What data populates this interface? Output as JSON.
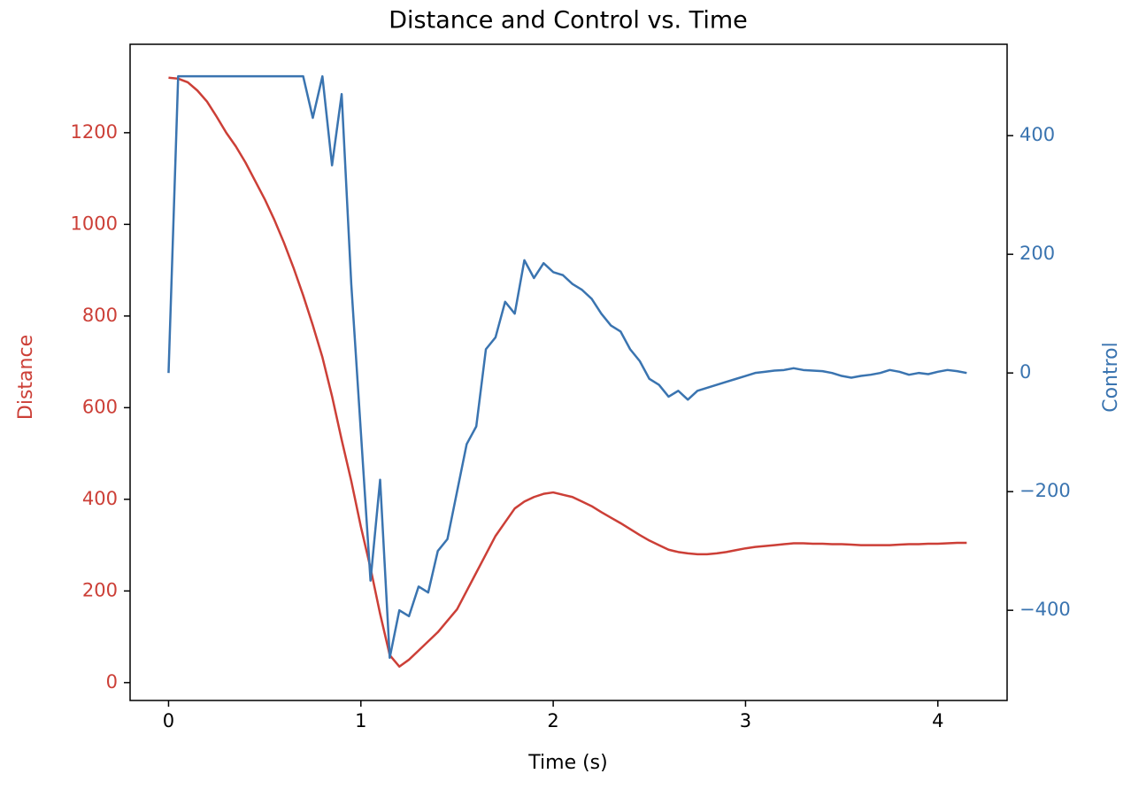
{
  "chart_data": {
    "type": "line",
    "title": "Distance and Control vs. Time",
    "x_label": "Time (s)",
    "y_label": "Distance",
    "y2_label": "Control",
    "x": [
      0,
      0.05,
      0.1,
      0.15,
      0.2,
      0.25,
      0.3,
      0.35,
      0.4,
      0.45,
      0.5,
      0.55,
      0.6,
      0.65,
      0.7,
      0.75,
      0.8,
      0.85,
      0.9,
      0.95,
      1.0,
      1.05,
      1.1,
      1.15,
      1.2,
      1.25,
      1.3,
      1.35,
      1.4,
      1.45,
      1.5,
      1.55,
      1.6,
      1.65,
      1.7,
      1.75,
      1.8,
      1.85,
      1.9,
      1.95,
      2.0,
      2.05,
      2.1,
      2.15,
      2.2,
      2.25,
      2.3,
      2.35,
      2.4,
      2.45,
      2.5,
      2.55,
      2.6,
      2.65,
      2.7,
      2.75,
      2.8,
      2.85,
      2.9,
      2.95,
      3.0,
      3.05,
      3.1,
      3.15,
      3.2,
      3.25,
      3.3,
      3.35,
      3.4,
      3.45,
      3.5,
      3.55,
      3.6,
      3.65,
      3.7,
      3.75,
      3.8,
      3.85,
      3.9,
      3.95,
      4.0,
      4.05,
      4.1,
      4.15
    ],
    "series": [
      {
        "color": "#cc3f37",
        "values": [
          1320,
          1318,
          1310,
          1292,
          1268,
          1235,
          1200,
          1170,
          1135,
          1095,
          1055,
          1010,
          960,
          905,
          845,
          780,
          710,
          625,
          530,
          440,
          340,
          250,
          150,
          60,
          35,
          50,
          70,
          90,
          110,
          135,
          160,
          200,
          240,
          280,
          320,
          350,
          380,
          395,
          405,
          412,
          415,
          410,
          405,
          395,
          385,
          372,
          360,
          348,
          335,
          322,
          310,
          300,
          290,
          285,
          282,
          280,
          280,
          282,
          285,
          289,
          293,
          296,
          298,
          300,
          302,
          304,
          304,
          303,
          303,
          302,
          302,
          301,
          300,
          300,
          300,
          300,
          301,
          302,
          302,
          303,
          303,
          304,
          305,
          305
        ]
      },
      {
        "color": "#3a74b0",
        "axis": "y2",
        "values": [
          0,
          500,
          500,
          500,
          500,
          500,
          500,
          500,
          500,
          500,
          500,
          500,
          500,
          500,
          500,
          430,
          500,
          350,
          470,
          150,
          -100,
          -350,
          -180,
          -480,
          -400,
          -410,
          -360,
          -370,
          -300,
          -280,
          -200,
          -120,
          -90,
          40,
          60,
          120,
          100,
          190,
          160,
          185,
          170,
          165,
          150,
          140,
          125,
          100,
          80,
          70,
          40,
          20,
          -10,
          -20,
          -40,
          -30,
          -45,
          -30,
          -25,
          -20,
          -15,
          -10,
          -5,
          0,
          2,
          4,
          5,
          8,
          5,
          4,
          3,
          0,
          -5,
          -8,
          -5,
          -3,
          0,
          5,
          2,
          -3,
          0,
          -2,
          2,
          5,
          3,
          0
        ]
      }
    ],
    "xlim": [
      -0.2,
      4.36
    ],
    "ylim": [
      -39,
      1393
    ],
    "y2lim": [
      -552,
      554
    ],
    "xticks": [
      0,
      1,
      2,
      3,
      4
    ],
    "yticks": [
      0,
      200,
      400,
      600,
      800,
      1000,
      1200
    ],
    "y2ticks": [
      {
        "value": -400,
        "label": "−400"
      },
      {
        "value": -200,
        "label": "−200"
      },
      0,
      200,
      400
    ]
  }
}
